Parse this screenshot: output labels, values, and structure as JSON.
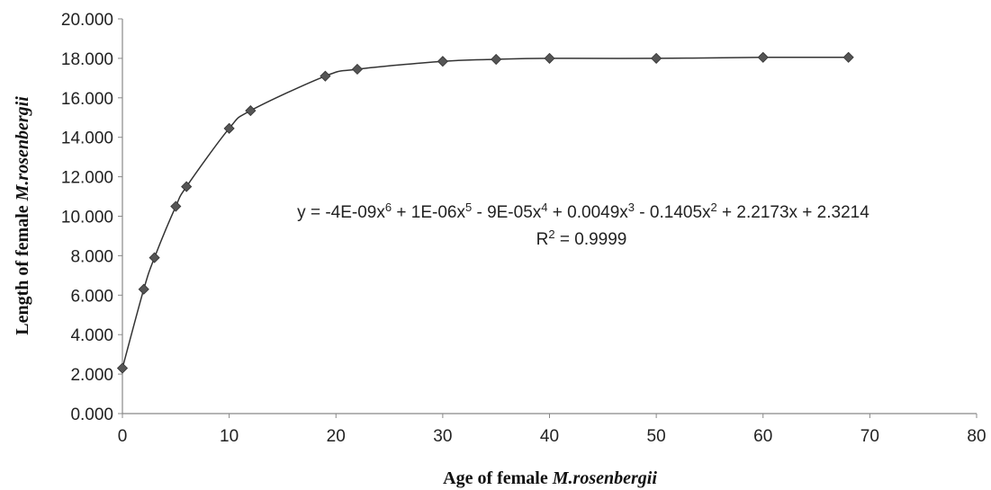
{
  "chart_data": {
    "type": "scatter",
    "xlabel": {
      "prefix": "Age of female ",
      "species": "M.rosenbergii"
    },
    "ylabel": {
      "prefix": "Length of female ",
      "species": "M.rosenbergii"
    },
    "xlim": [
      0,
      80
    ],
    "ylim": [
      0,
      20
    ],
    "x_ticks": [
      "0",
      "10",
      "20",
      "30",
      "40",
      "50",
      "60",
      "70",
      "80"
    ],
    "y_ticks": [
      "0.000",
      "2.000",
      "4.000",
      "6.000",
      "8.000",
      "10.000",
      "12.000",
      "14.000",
      "16.000",
      "18.000",
      "20.000"
    ],
    "grid": false,
    "marker": "diamond",
    "color": "#555555",
    "trendline": {
      "type": "polynomial",
      "order": 6,
      "coefficients": [
        -4e-09,
        1e-06,
        -9e-05,
        0.0049,
        -0.1405,
        2.2173,
        2.3214
      ],
      "equation": {
        "prefix": "y = -4E-09x",
        "e1": "6",
        "t2": " + 1E-06x",
        "e2": "5",
        "t3": " - 9E-05x",
        "e3": "4",
        "t4": " + 0.0049x",
        "e4": "3",
        "t5": " - 0.1405x",
        "e5": "2",
        "t6": " + 2.2173x + 2.3214"
      },
      "r2": {
        "prefix": "R",
        "exp": "2",
        "value": " = 0.9999"
      }
    },
    "points": [
      {
        "x": 0,
        "y": 2.3
      },
      {
        "x": 2,
        "y": 6.3
      },
      {
        "x": 3,
        "y": 7.9
      },
      {
        "x": 5,
        "y": 10.5
      },
      {
        "x": 6,
        "y": 11.5
      },
      {
        "x": 10,
        "y": 14.45
      },
      {
        "x": 12,
        "y": 15.35
      },
      {
        "x": 19,
        "y": 17.1
      },
      {
        "x": 22,
        "y": 17.45
      },
      {
        "x": 30,
        "y": 17.85
      },
      {
        "x": 35,
        "y": 17.95
      },
      {
        "x": 40,
        "y": 18.0
      },
      {
        "x": 50,
        "y": 18.0
      },
      {
        "x": 60,
        "y": 18.05
      },
      {
        "x": 68,
        "y": 18.05
      }
    ]
  }
}
